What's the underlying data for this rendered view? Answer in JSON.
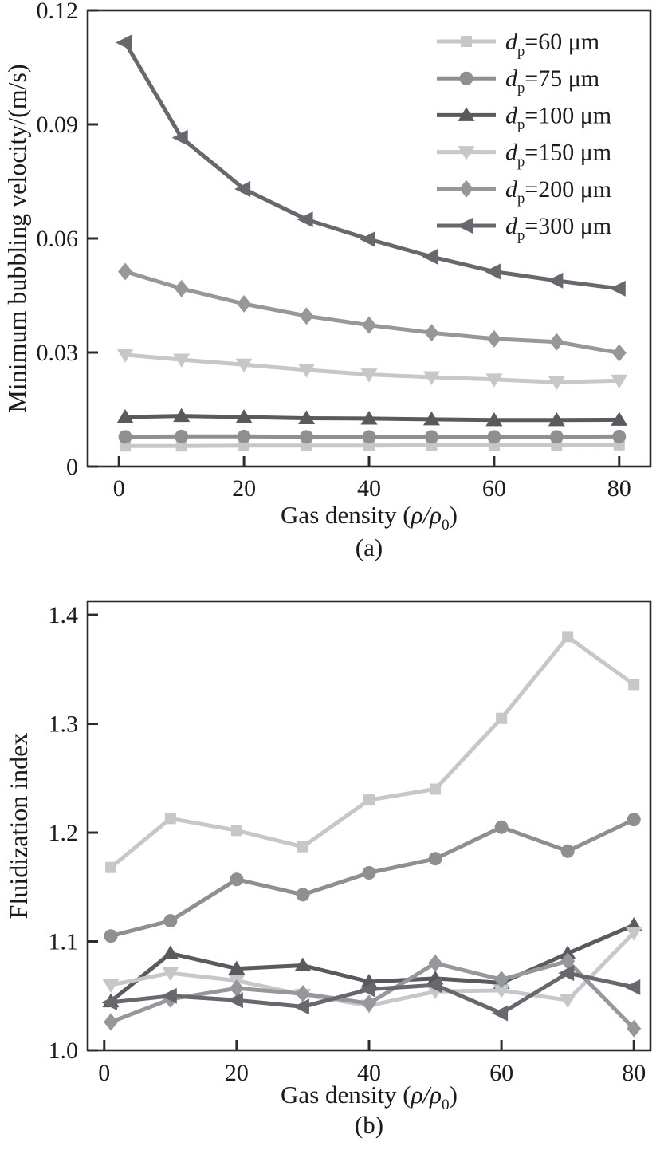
{
  "figure": {
    "background": "#ffffff",
    "axis_color": "#2b2b2b",
    "text_color": "#1b1b1b"
  },
  "chart_data": [
    {
      "type": "line",
      "sublabel": "(a)",
      "title": "",
      "xlabel": "Gas density (ρ/ρ0)",
      "xlabel_parts": [
        [
          "Gas density (",
          "n"
        ],
        [
          "ρ/ρ",
          "i"
        ],
        [
          "0",
          "s"
        ],
        [
          ")",
          "n"
        ]
      ],
      "ylabel": "Minimum bubbling velocity/(m/s)",
      "x": [
        1,
        10,
        20,
        30,
        40,
        50,
        60,
        70,
        80
      ],
      "xticks": [
        0,
        20,
        40,
        60,
        80
      ],
      "xtick_labels": [
        "0",
        "20",
        "40",
        "60",
        "80"
      ],
      "yticks": [
        0,
        0.03,
        0.06,
        0.09,
        0.12
      ],
      "ytick_labels": [
        "0",
        "0.03",
        "0.06",
        "0.09",
        "0.12"
      ],
      "xlim": [
        -5,
        85
      ],
      "ylim": [
        0,
        0.12
      ],
      "grid": false,
      "legend_position": "top-right-inside",
      "series": [
        {
          "name": "dp=60 μm",
          "label_parts": [
            [
              "d",
              "i"
            ],
            [
              "p",
              "s"
            ],
            [
              "=60 μm",
              "n"
            ]
          ],
          "marker": "square",
          "color": "#c7c7c7",
          "values": [
            0.0054,
            0.0054,
            0.0055,
            0.0055,
            0.0055,
            0.0056,
            0.0056,
            0.0056,
            0.0057
          ]
        },
        {
          "name": "dp=75 μm",
          "label_parts": [
            [
              "d",
              "i"
            ],
            [
              "p",
              "s"
            ],
            [
              "=75 μm",
              "n"
            ]
          ],
          "marker": "circle",
          "color": "#8e8f91",
          "values": [
            0.0078,
            0.0079,
            0.0079,
            0.0078,
            0.0078,
            0.0078,
            0.0078,
            0.0078,
            0.0079
          ]
        },
        {
          "name": "dp=100 μm",
          "label_parts": [
            [
              "d",
              "i"
            ],
            [
              "p",
              "s"
            ],
            [
              "=100 μm",
              "n"
            ]
          ],
          "marker": "triangle-up",
          "color": "#595a5e",
          "values": [
            0.013,
            0.0133,
            0.013,
            0.0127,
            0.0126,
            0.0124,
            0.0122,
            0.0122,
            0.0123
          ]
        },
        {
          "name": "dp=150 μm",
          "label_parts": [
            [
              "d",
              "i"
            ],
            [
              "p",
              "s"
            ],
            [
              "=150 μm",
              "n"
            ]
          ],
          "marker": "triangle-down",
          "color": "#c6c7c9",
          "values": [
            0.0294,
            0.0281,
            0.0268,
            0.0254,
            0.0242,
            0.0235,
            0.0229,
            0.0222,
            0.0226
          ]
        },
        {
          "name": "dp=200 μm",
          "label_parts": [
            [
              "d",
              "i"
            ],
            [
              "p",
              "s"
            ],
            [
              "=200 μm",
              "n"
            ]
          ],
          "marker": "diamond",
          "color": "#95979a",
          "values": [
            0.0513,
            0.0468,
            0.0428,
            0.0396,
            0.0372,
            0.0352,
            0.0336,
            0.0328,
            0.0299
          ]
        },
        {
          "name": "dp=300 μm",
          "label_parts": [
            [
              "d",
              "i"
            ],
            [
              "p",
              "s"
            ],
            [
              "=300 μm",
              "n"
            ]
          ],
          "marker": "triangle-left",
          "color": "#66686d",
          "values": [
            0.1115,
            0.0865,
            0.073,
            0.065,
            0.0598,
            0.0552,
            0.0513,
            0.0489,
            0.0468
          ]
        }
      ]
    },
    {
      "type": "line",
      "sublabel": "(b)",
      "title": "",
      "xlabel": "Gas density (ρ/ρ0)",
      "xlabel_parts": [
        [
          "Gas density (",
          "n"
        ],
        [
          "ρ/ρ",
          "i"
        ],
        [
          "0",
          "s"
        ],
        [
          ")",
          "n"
        ]
      ],
      "ylabel": "Fluidization index",
      "x": [
        1,
        10,
        20,
        30,
        40,
        50,
        60,
        70,
        80
      ],
      "xticks": [
        0,
        20,
        40,
        60,
        80
      ],
      "xtick_labels": [
        "0",
        "20",
        "40",
        "60",
        "80"
      ],
      "yticks": [
        1.0,
        1.1,
        1.2,
        1.3,
        1.4
      ],
      "ytick_labels": [
        "1.0",
        "1.1",
        "1.2",
        "1.3",
        "1.4"
      ],
      "xlim": [
        -2.5,
        82.5
      ],
      "ylim": [
        1.0,
        1.4125
      ],
      "grid": false,
      "legend_position": "none",
      "series": [
        {
          "name": "dp=60 μm",
          "label_parts": [
            [
              "d",
              "i"
            ],
            [
              "p",
              "s"
            ],
            [
              "=60 μm",
              "n"
            ]
          ],
          "marker": "square",
          "color": "#c7c7c7",
          "values": [
            1.168,
            1.213,
            1.202,
            1.187,
            1.23,
            1.24,
            1.305,
            1.38,
            1.336
          ]
        },
        {
          "name": "dp=75 μm",
          "label_parts": [
            [
              "d",
              "i"
            ],
            [
              "p",
              "s"
            ],
            [
              "=75 μm",
              "n"
            ]
          ],
          "marker": "circle",
          "color": "#8e8f91",
          "values": [
            1.105,
            1.119,
            1.157,
            1.143,
            1.163,
            1.176,
            1.205,
            1.183,
            1.212
          ]
        },
        {
          "name": "dp=100 μm",
          "label_parts": [
            [
              "d",
              "i"
            ],
            [
              "p",
              "s"
            ],
            [
              "=100 μm",
              "n"
            ]
          ],
          "marker": "triangle-up",
          "color": "#595a5e",
          "values": [
            1.045,
            1.089,
            1.075,
            1.078,
            1.063,
            1.066,
            1.062,
            1.089,
            1.115
          ]
        },
        {
          "name": "dp=150 μm",
          "label_parts": [
            [
              "d",
              "i"
            ],
            [
              "p",
              "s"
            ],
            [
              "=150 μm",
              "n"
            ]
          ],
          "marker": "triangle-down",
          "color": "#c6c7c9",
          "values": [
            1.06,
            1.071,
            1.064,
            1.051,
            1.041,
            1.054,
            1.055,
            1.046,
            1.108
          ]
        },
        {
          "name": "dp=200 μm",
          "label_parts": [
            [
              "d",
              "i"
            ],
            [
              "p",
              "s"
            ],
            [
              "=200 μm",
              "n"
            ]
          ],
          "marker": "diamond",
          "color": "#95979a",
          "values": [
            1.026,
            1.047,
            1.057,
            1.052,
            1.043,
            1.08,
            1.065,
            1.082,
            1.02
          ]
        },
        {
          "name": "dp=300 μm",
          "label_parts": [
            [
              "d",
              "i"
            ],
            [
              "p",
              "s"
            ],
            [
              "=300 μm",
              "n"
            ]
          ],
          "marker": "triangle-left",
          "color": "#66686d",
          "values": [
            1.044,
            1.05,
            1.046,
            1.04,
            1.056,
            1.06,
            1.034,
            1.071,
            1.058
          ]
        }
      ]
    }
  ]
}
